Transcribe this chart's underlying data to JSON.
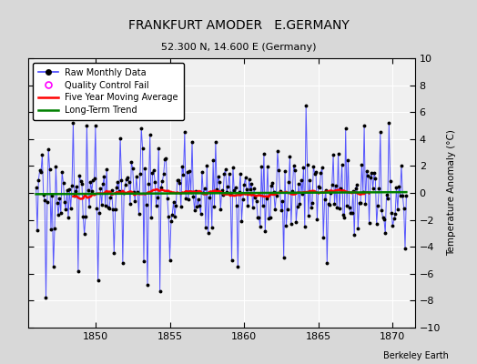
{
  "title": "FRANKFURT AMODER   E.GERMANY",
  "subtitle": "52.300 N, 14.600 E (Germany)",
  "ylabel": "Temperature Anomaly (°C)",
  "credit": "Berkeley Earth",
  "xlim": [
    1845.5,
    1871.5
  ],
  "ylim": [
    -10,
    10
  ],
  "yticks": [
    -10,
    -8,
    -6,
    -4,
    -2,
    0,
    2,
    4,
    6,
    8,
    10
  ],
  "xticks": [
    1850,
    1855,
    1860,
    1865,
    1870
  ],
  "plot_bg_color": "#f0f0f0",
  "fig_bg_color": "#d8d8d8",
  "raw_line_color": "#4444ff",
  "raw_marker_color": "black",
  "ma_color": "red",
  "trend_color": "green",
  "qc_color": "magenta",
  "grid_color": "white",
  "seed": 17
}
